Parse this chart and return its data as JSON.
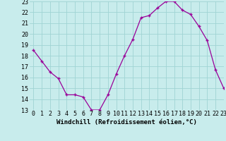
{
  "x": [
    0,
    1,
    2,
    3,
    4,
    5,
    6,
    7,
    8,
    9,
    10,
    11,
    12,
    13,
    14,
    15,
    16,
    17,
    18,
    19,
    20,
    21,
    22,
    23
  ],
  "y": [
    18.5,
    17.5,
    16.5,
    15.9,
    14.4,
    14.4,
    14.2,
    13.0,
    13.0,
    14.4,
    16.3,
    18.0,
    19.5,
    21.5,
    21.7,
    22.4,
    23.0,
    23.0,
    22.2,
    21.8,
    20.7,
    19.4,
    16.7,
    15.0
  ],
  "xlabel": "Windchill (Refroidissement éolien,°C)",
  "ylim": [
    13,
    23
  ],
  "xlim": [
    -0.5,
    23
  ],
  "yticks": [
    13,
    14,
    15,
    16,
    17,
    18,
    19,
    20,
    21,
    22,
    23
  ],
  "xticks": [
    0,
    1,
    2,
    3,
    4,
    5,
    6,
    7,
    8,
    9,
    10,
    11,
    12,
    13,
    14,
    15,
    16,
    17,
    18,
    19,
    20,
    21,
    22,
    23
  ],
  "line_color": "#990099",
  "marker": "+",
  "bg_color": "#c8ecec",
  "grid_color": "#a0d4d4",
  "label_fontsize": 6.5,
  "tick_fontsize": 6.0
}
